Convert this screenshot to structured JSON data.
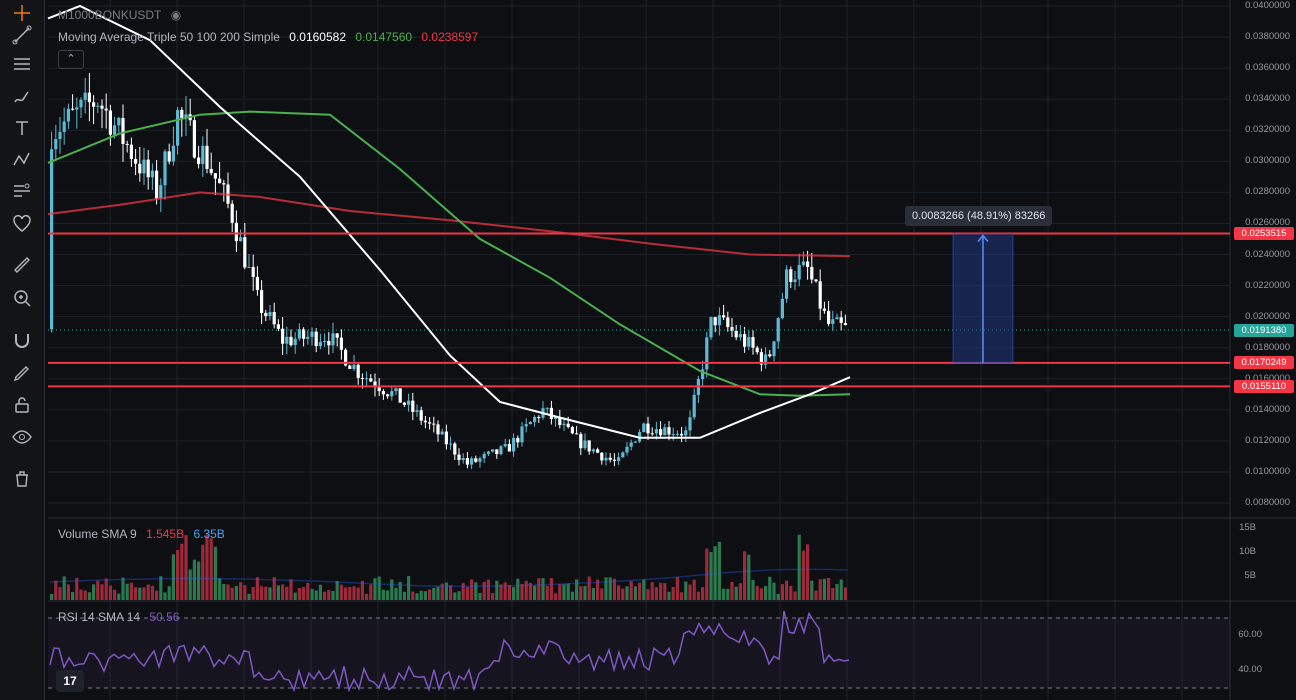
{
  "symbol": {
    "name": "M1000BONKUSDT"
  },
  "ma_legend": {
    "label": "Moving Average Triple 50 100 200 Simple",
    "v50": "0.0160582",
    "v100": "0.0147560",
    "v200": "0.0238597",
    "color50": "#ffffff",
    "color100": "#4caf50",
    "color200": "#f23645"
  },
  "volume_legend": {
    "label": "Volume SMA 9",
    "v1": "1.545B",
    "v2": "6.35B"
  },
  "rsi_legend": {
    "label": "RSI 14 SMA 14",
    "value": "50.56"
  },
  "price_axis": [
    "0.0400000",
    "0.0380000",
    "0.0360000",
    "0.0340000",
    "0.0320000",
    "0.0300000",
    "0.0280000",
    "0.0260000",
    "0.0240000",
    "0.0220000",
    "0.0200000",
    "0.0180000",
    "0.0160000",
    "0.0140000",
    "0.0120000",
    "0.0100000",
    "0.0080000"
  ],
  "volume_axis": [
    "15B",
    "10B",
    "5B"
  ],
  "rsi_axis": [
    "60.00",
    "40.00"
  ],
  "price_tags": [
    {
      "label": "0.0253515",
      "value": 0.0253515,
      "color": "#f23645"
    },
    {
      "label": "0.0191380",
      "value": 0.019138,
      "color": "#26a69a"
    },
    {
      "label": "0.0170249",
      "value": 0.0170249,
      "color": "#f23645"
    },
    {
      "label": "0.0155110",
      "value": 0.015511,
      "color": "#f23645"
    }
  ],
  "horizontal_lines": [
    0.0253515,
    0.0170249,
    0.015511
  ],
  "last_price": 0.019138,
  "measure": {
    "text": "0.0083266 (48.91%) 83266",
    "from": 0.0170249,
    "to": 0.0253515
  },
  "toolbar": {
    "items": [
      "crosshair-icon",
      "trendline-icon",
      "fib-icon",
      "brush-icon",
      "text-icon",
      "pattern-icon",
      "forecast-icon",
      "heart-icon",
      "ruler-icon",
      "zoom-icon",
      "magnet-icon",
      "lock-drawing-icon",
      "lock-icon",
      "eye-icon",
      "trash-icon"
    ]
  },
  "colors": {
    "bull": "#5fb9d4",
    "bear": "#ffffff",
    "vol_up": "#2a7a4f",
    "vol_down": "#9c2a3a",
    "rsi": "#7e57c2"
  },
  "logo_text": "17"
}
